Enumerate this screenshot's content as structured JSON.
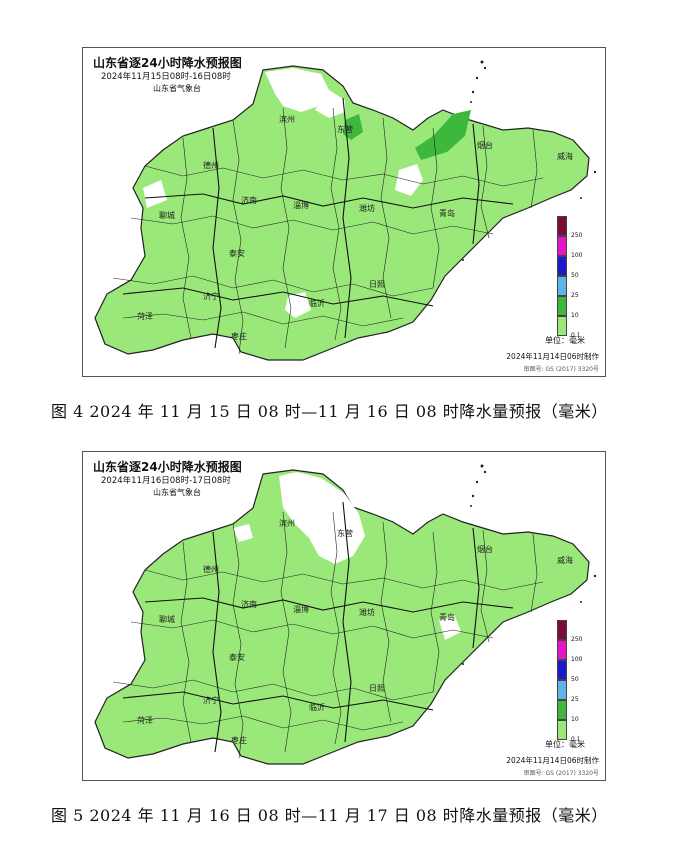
{
  "figures": [
    {
      "map_title": "山东省逐24小时降水预报图",
      "period": "2024年11月15日08时-16日08时",
      "agency": "山东省气象台",
      "made_time": "2024年11月14日06时制作",
      "approval": "审图号: GS (2017) 3320号",
      "caption": "图 4 2024 年 11 月 15 日 08 时—11 月 16 日 08 时降水量预报（毫米）"
    },
    {
      "map_title": "山东省逐24小时降水预报图",
      "period": "2024年11月16日08时-17日08时",
      "agency": "山东省气象台",
      "made_time": "2024年11月14日06时制作",
      "approval": "审图号: GS (2017) 3320号",
      "caption": "图 5 2024 年 11 月 16 日 08 时—11 月 17 日 08 时降水量预报（毫米）"
    }
  ],
  "cities": [
    "滨州",
    "东营",
    "烟台",
    "威海",
    "德州",
    "济南",
    "淄博",
    "潍坊",
    "聊城",
    "青岛",
    "泰安",
    "日照",
    "济宁",
    "临沂",
    "菏泽",
    "枣庄"
  ],
  "legend": {
    "unit": "单位：毫米",
    "ticks": [
      "250",
      "100",
      "50",
      "25",
      "10",
      "0.1"
    ],
    "colors": [
      "#7a0b3a",
      "#e815c8",
      "#1a1acb",
      "#5fb4e8",
      "#3db83d",
      "#9ae879"
    ]
  },
  "colors": {
    "light_rain": "#9ae879",
    "moderate_rain": "#3db83d",
    "no_rain": "#ffffff",
    "boundary": "#222222"
  }
}
